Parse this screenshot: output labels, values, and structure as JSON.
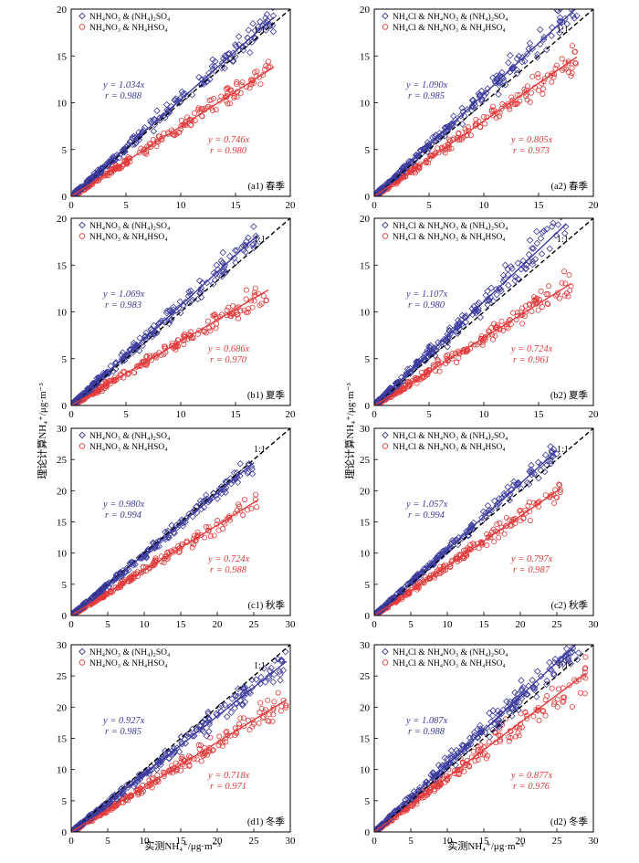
{
  "figure": {
    "ylabel": "理论计算NH₄⁺/μg·m⁻³",
    "xlabel": "实测NH₄⁺/μg·m⁻³",
    "colors": {
      "blue": "#3b3b9e",
      "red": "#e23a3a",
      "black": "#000000"
    }
  },
  "chart_data": [
    {
      "type": "scatter",
      "panel_label": "(a1) 春季",
      "ratio_label": "1:1",
      "xlim": [
        0,
        20
      ],
      "ylim": [
        0,
        20
      ],
      "xticks": [
        0,
        5,
        10,
        15,
        20
      ],
      "yticks": [
        0,
        5,
        10,
        15,
        20
      ],
      "series": [
        {
          "name": "NH₄NO₃ & (NH₄)₂SO₄",
          "marker": "diamond",
          "slope": 1.034,
          "fit_eq": "y = 1.034x",
          "r_label": "r = 0.988",
          "x_max": 18.5,
          "n": 230,
          "noise": 0.09,
          "seed": 11
        },
        {
          "name": "NH₄NO₃ & NH₄HSO₄",
          "marker": "circle",
          "slope": 0.746,
          "fit_eq": "y = 0.746x",
          "r_label": "r = 0.980",
          "x_max": 18.5,
          "n": 230,
          "noise": 0.1,
          "seed": 12
        }
      ]
    },
    {
      "type": "scatter",
      "panel_label": "(a2) 春季",
      "ratio_label": "1:1",
      "xlim": [
        0,
        20
      ],
      "ylim": [
        0,
        20
      ],
      "xticks": [
        0,
        5,
        10,
        15,
        20
      ],
      "yticks": [
        0,
        5,
        10,
        15,
        20
      ],
      "series": [
        {
          "name": "NH₄Cl & NH₄NO₃ & (NH₄)₂SO₄",
          "marker": "diamond",
          "slope": 1.09,
          "fit_eq": "y = 1.090x",
          "r_label": "r = 0.985",
          "x_max": 18.5,
          "n": 230,
          "noise": 0.1,
          "seed": 21
        },
        {
          "name": "NH₄Cl & NH₄NO₃ & NH₄HSO₄",
          "marker": "circle",
          "slope": 0.805,
          "fit_eq": "y = 0.805x",
          "r_label": "r = 0.973",
          "x_max": 18.5,
          "n": 230,
          "noise": 0.12,
          "seed": 22
        }
      ]
    },
    {
      "type": "scatter",
      "panel_label": "(b1) 夏季",
      "ratio_label": "1:1",
      "xlim": [
        0,
        20
      ],
      "ylim": [
        0,
        20
      ],
      "xticks": [
        0,
        5,
        10,
        15,
        20
      ],
      "yticks": [
        0,
        5,
        10,
        15,
        20
      ],
      "series": [
        {
          "name": "NH₄NO₃ & (NH₄)₂SO₄",
          "marker": "diamond",
          "slope": 1.069,
          "fit_eq": "y = 1.069x",
          "r_label": "r = 0.983",
          "x_max": 17,
          "n": 230,
          "noise": 0.1,
          "seed": 31
        },
        {
          "name": "NH₄NO₃ & NH₄HSO₄",
          "marker": "circle",
          "slope": 0.686,
          "fit_eq": "y = 0.686x",
          "r_label": "r = 0.970",
          "x_max": 18,
          "n": 230,
          "noise": 0.12,
          "seed": 32
        }
      ]
    },
    {
      "type": "scatter",
      "panel_label": "(b2) 夏季",
      "ratio_label": "1:1",
      "xlim": [
        0,
        20
      ],
      "ylim": [
        0,
        20
      ],
      "xticks": [
        0,
        5,
        10,
        15,
        20
      ],
      "yticks": [
        0,
        5,
        10,
        15,
        20
      ],
      "series": [
        {
          "name": "NH₄Cl & NH₄NO₃ & (NH₄)₂SO₄",
          "marker": "diamond",
          "slope": 1.107,
          "fit_eq": "y = 1.107x",
          "r_label": "r = 0.980",
          "x_max": 17.5,
          "n": 230,
          "noise": 0.11,
          "seed": 41
        },
        {
          "name": "NH₄Cl & NH₄NO₃ & NH₄HSO₄",
          "marker": "circle",
          "slope": 0.724,
          "fit_eq": "y = 0.724x",
          "r_label": "r = 0.961",
          "x_max": 18,
          "n": 230,
          "noise": 0.13,
          "seed": 42
        }
      ]
    },
    {
      "type": "scatter",
      "panel_label": "(c1) 秋季",
      "ratio_label": "1:1",
      "xlim": [
        0,
        30
      ],
      "ylim": [
        0,
        30
      ],
      "xticks": [
        0,
        5,
        10,
        15,
        20,
        25,
        30
      ],
      "yticks": [
        0,
        5,
        10,
        15,
        20,
        25,
        30
      ],
      "series": [
        {
          "name": "NH₄NO₃ & (NH₄)₂SO₄",
          "marker": "diamond",
          "slope": 0.98,
          "fit_eq": "y = 0.980x",
          "r_label": "r = 0.994",
          "x_max": 25,
          "n": 230,
          "noise": 0.07,
          "seed": 51
        },
        {
          "name": "NH₄NO₃ & NH₄HSO₄",
          "marker": "circle",
          "slope": 0.724,
          "fit_eq": "y = 0.724x",
          "r_label": "r = 0.988",
          "x_max": 25.5,
          "n": 230,
          "noise": 0.09,
          "seed": 52
        }
      ]
    },
    {
      "type": "scatter",
      "panel_label": "(c2) 秋季",
      "ratio_label": "1:1",
      "xlim": [
        0,
        30
      ],
      "ylim": [
        0,
        30
      ],
      "xticks": [
        0,
        5,
        10,
        15,
        20,
        25,
        30
      ],
      "yticks": [
        0,
        5,
        10,
        15,
        20,
        25,
        30
      ],
      "series": [
        {
          "name": "NH₄Cl & NH₄NO₃ & (NH₄)₂SO₄",
          "marker": "diamond",
          "slope": 1.057,
          "fit_eq": "y = 1.057x",
          "r_label": "r = 0.994",
          "x_max": 25,
          "n": 230,
          "noise": 0.07,
          "seed": 61
        },
        {
          "name": "NH₄Cl & NH₄NO₃ & NH₄HSO₄",
          "marker": "circle",
          "slope": 0.797,
          "fit_eq": "y = 0.797x",
          "r_label": "r = 0.987",
          "x_max": 25.5,
          "n": 230,
          "noise": 0.09,
          "seed": 62
        }
      ]
    },
    {
      "type": "scatter",
      "panel_label": "(d1) 冬季",
      "ratio_label": "1:1",
      "xlim": [
        0,
        30
      ],
      "ylim": [
        0,
        30
      ],
      "xticks": [
        0,
        5,
        10,
        15,
        20,
        25,
        30
      ],
      "yticks": [
        0,
        5,
        10,
        15,
        20,
        25,
        30
      ],
      "series": [
        {
          "name": "NH₄NO₃ & (NH₄)₂SO₄",
          "marker": "diamond",
          "slope": 0.927,
          "fit_eq": "y = 0.927x",
          "r_label": "r = 0.985",
          "x_max": 29.5,
          "n": 260,
          "noise": 0.1,
          "seed": 71
        },
        {
          "name": "NH₄NO₃ & NH₄HSO₄",
          "marker": "circle",
          "slope": 0.718,
          "fit_eq": "y = 0.718x",
          "r_label": "r = 0.971",
          "x_max": 29.5,
          "n": 260,
          "noise": 0.12,
          "seed": 72
        }
      ]
    },
    {
      "type": "scatter",
      "panel_label": "(d2) 冬季",
      "ratio_label": "1:1",
      "xlim": [
        0,
        30
      ],
      "ylim": [
        0,
        30
      ],
      "xticks": [
        0,
        5,
        10,
        15,
        20,
        25,
        30
      ],
      "yticks": [
        0,
        5,
        10,
        15,
        20,
        25,
        30
      ],
      "series": [
        {
          "name": "NH₄Cl & NH₄NO₃ & (NH₄)₂SO₄",
          "marker": "diamond",
          "slope": 1.087,
          "fit_eq": "y = 1.087x",
          "r_label": "r = 0.988",
          "x_max": 28.5,
          "n": 260,
          "noise": 0.11,
          "seed": 81
        },
        {
          "name": "NH₄Cl & NH₄NO₃ & NH₄HSO₄",
          "marker": "circle",
          "slope": 0.877,
          "fit_eq": "y = 0.877x",
          "r_label": "r = 0.976",
          "x_max": 29,
          "n": 260,
          "noise": 0.13,
          "seed": 82
        }
      ]
    }
  ]
}
